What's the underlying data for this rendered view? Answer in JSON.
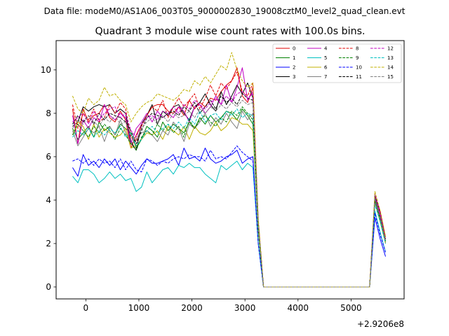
{
  "suptitle": "Data file: modeM0/AS1A06_003T05_9000002830_19008cztM0_level2_quad_clean.evt",
  "chart_data": {
    "type": "line",
    "title": "Quadrant 3 module wise count rates with 100.0s bins.",
    "xlabel": "",
    "ylabel": "",
    "x_offset_label": "+2.9206e8",
    "xlim": [
      -560,
      6000
    ],
    "ylim": [
      -0.55,
      11.35
    ],
    "xticks": [
      0,
      1000,
      2000,
      3000,
      4000,
      5000
    ],
    "xtick_labels": [
      "0",
      "1000",
      "2000",
      "3000",
      "4000",
      "5000"
    ],
    "yticks": [
      0,
      2,
      4,
      6,
      8,
      10
    ],
    "ytick_labels": [
      "0",
      "2",
      "4",
      "6",
      "8",
      "10"
    ],
    "grid": false,
    "legend_position": "upper right",
    "legend_columns": 4,
    "x": [
      -250,
      -150,
      -50,
      50,
      150,
      250,
      350,
      450,
      550,
      650,
      750,
      850,
      950,
      1050,
      1150,
      1250,
      1350,
      1450,
      1550,
      1650,
      1750,
      1850,
      1950,
      2050,
      2150,
      2250,
      2350,
      2450,
      2550,
      2650,
      2750,
      2850,
      2950,
      3050,
      3150,
      3250,
      3350,
      3450,
      3550,
      3650,
      3750,
      3850,
      3950,
      4050,
      4150,
      4250,
      4350,
      4450,
      4550,
      4650,
      4750,
      4850,
      4950,
      5050,
      5150,
      5250,
      5350,
      5450,
      5550,
      5650
    ],
    "series": [
      {
        "name": "0",
        "color": "#e00000",
        "dash": false,
        "values": [
          8.2,
          6.6,
          8.2,
          7.6,
          7.9,
          8.0,
          8.4,
          7.8,
          7.6,
          8.1,
          7.7,
          6.4,
          7.0,
          7.5,
          7.9,
          8.3,
          8.4,
          8.4,
          8.1,
          8.0,
          8.3,
          7.9,
          8.6,
          8.2,
          8.5,
          8.3,
          8.7,
          8.6,
          9.0,
          9.3,
          9.5,
          10.1,
          8.8,
          8.5,
          9.2,
          3.0,
          0.0,
          0.0,
          0.0,
          0.0,
          0.0,
          0.0,
          0.0,
          0.0,
          0.0,
          0.0,
          0.0,
          0.0,
          0.0,
          0.0,
          0.0,
          0.0,
          0.0,
          0.0,
          0.0,
          0.0,
          0.0,
          4.2,
          3.4,
          2.0
        ]
      },
      {
        "name": "1",
        "color": "#008000",
        "dash": false,
        "values": [
          7.3,
          6.8,
          7.1,
          7.4,
          6.9,
          7.6,
          7.2,
          7.4,
          7.0,
          7.5,
          7.3,
          7.1,
          6.4,
          6.8,
          7.4,
          7.2,
          6.9,
          7.6,
          7.2,
          7.5,
          7.3,
          7.1,
          7.6,
          7.3,
          7.8,
          7.5,
          7.9,
          7.6,
          7.8,
          8.1,
          8.0,
          7.7,
          8.2,
          7.9,
          7.5,
          2.6,
          0.0,
          0.0,
          0.0,
          0.0,
          0.0,
          0.0,
          0.0,
          0.0,
          0.0,
          0.0,
          0.0,
          0.0,
          0.0,
          0.0,
          0.0,
          0.0,
          0.0,
          0.0,
          0.0,
          0.0,
          0.0,
          4.0,
          3.0,
          2.1
        ]
      },
      {
        "name": "2",
        "color": "#0000ff",
        "dash": false,
        "values": [
          5.5,
          5.1,
          6.1,
          5.6,
          5.8,
          5.5,
          5.9,
          5.6,
          5.9,
          5.4,
          5.8,
          5.5,
          5.2,
          5.6,
          5.9,
          5.7,
          5.7,
          5.8,
          5.9,
          6.1,
          5.6,
          6.4,
          5.9,
          6.0,
          5.8,
          6.4,
          5.9,
          5.7,
          5.8,
          6.0,
          6.1,
          6.3,
          5.7,
          5.9,
          6.0,
          2.0,
          0.0,
          0.0,
          0.0,
          0.0,
          0.0,
          0.0,
          0.0,
          0.0,
          0.0,
          0.0,
          0.0,
          0.0,
          0.0,
          0.0,
          0.0,
          0.0,
          0.0,
          0.0,
          0.0,
          0.0,
          0.0,
          3.2,
          2.2,
          1.4
        ]
      },
      {
        "name": "3",
        "color": "#000000",
        "dash": false,
        "values": [
          7.4,
          7.6,
          8.3,
          8.1,
          8.3,
          8.4,
          8.3,
          8.4,
          8.0,
          8.2,
          8.0,
          6.7,
          6.3,
          7.5,
          7.9,
          8.4,
          7.5,
          8.1,
          7.9,
          8.3,
          8.4,
          8.0,
          7.7,
          8.3,
          8.5,
          8.9,
          8.4,
          8.1,
          9.0,
          8.4,
          8.8,
          9.3,
          8.9,
          9.4,
          8.7,
          3.0,
          0.0,
          0.0,
          0.0,
          0.0,
          0.0,
          0.0,
          0.0,
          0.0,
          0.0,
          0.0,
          0.0,
          0.0,
          0.0,
          0.0,
          0.0,
          0.0,
          0.0,
          0.0,
          0.0,
          0.0,
          0.0,
          3.9,
          3.2,
          2.2
        ]
      },
      {
        "name": "4",
        "color": "#c000c0",
        "dash": false,
        "values": [
          7.9,
          6.6,
          7.7,
          7.3,
          7.8,
          7.6,
          8.4,
          7.9,
          7.7,
          8.0,
          7.8,
          6.6,
          7.3,
          7.6,
          8.0,
          7.6,
          8.1,
          7.8,
          8.0,
          7.8,
          8.3,
          8.1,
          7.6,
          8.3,
          8.4,
          8.0,
          8.3,
          8.8,
          8.4,
          9.3,
          8.5,
          9.2,
          10.1,
          8.6,
          9.0,
          3.0,
          0.0,
          0.0,
          0.0,
          0.0,
          0.0,
          0.0,
          0.0,
          0.0,
          0.0,
          0.0,
          0.0,
          0.0,
          0.0,
          0.0,
          0.0,
          0.0,
          0.0,
          0.0,
          0.0,
          0.0,
          0.0,
          4.1,
          3.3,
          2.1
        ]
      },
      {
        "name": "5",
        "color": "#00c0c0",
        "dash": false,
        "values": [
          5.1,
          4.8,
          5.4,
          5.4,
          5.2,
          4.8,
          5.0,
          5.3,
          5.0,
          5.2,
          4.9,
          5.0,
          4.4,
          4.6,
          5.3,
          4.8,
          5.1,
          5.4,
          5.5,
          5.2,
          5.6,
          5.5,
          5.7,
          5.5,
          5.5,
          5.2,
          5.0,
          4.8,
          5.6,
          5.4,
          5.6,
          5.8,
          5.4,
          5.7,
          5.5,
          2.0,
          0.0,
          0.0,
          0.0,
          0.0,
          0.0,
          0.0,
          0.0,
          0.0,
          0.0,
          0.0,
          0.0,
          0.0,
          0.0,
          0.0,
          0.0,
          0.0,
          0.0,
          0.0,
          0.0,
          0.0,
          0.0,
          3.5,
          2.5,
          1.6
        ]
      },
      {
        "name": "6",
        "color": "#c0b000",
        "dash": false,
        "values": [
          7.0,
          7.6,
          7.4,
          6.8,
          7.5,
          6.9,
          7.3,
          7.1,
          6.9,
          7.0,
          7.3,
          6.4,
          6.5,
          6.8,
          7.1,
          7.0,
          7.2,
          6.8,
          7.4,
          7.2,
          7.0,
          7.4,
          6.8,
          7.4,
          7.1,
          7.0,
          7.2,
          7.6,
          7.2,
          7.4,
          7.8,
          7.7,
          7.5,
          7.5,
          7.2,
          2.6,
          0.0,
          0.0,
          0.0,
          0.0,
          0.0,
          0.0,
          0.0,
          0.0,
          0.0,
          0.0,
          0.0,
          0.0,
          0.0,
          0.0,
          0.0,
          0.0,
          0.0,
          0.0,
          0.0,
          0.0,
          0.0,
          3.9,
          3.0,
          2.0
        ]
      },
      {
        "name": "7",
        "color": "#808080",
        "dash": false,
        "values": [
          7.2,
          6.5,
          6.9,
          7.3,
          7.1,
          7.4,
          6.7,
          7.4,
          7.0,
          7.7,
          7.1,
          6.6,
          6.8,
          7.1,
          7.2,
          7.0,
          6.7,
          7.2,
          7.0,
          7.6,
          7.3,
          6.7,
          7.5,
          7.3,
          7.6,
          8.0,
          7.4,
          7.8,
          7.5,
          8.0,
          7.6,
          7.3,
          8.1,
          7.7,
          8.0,
          2.8,
          0.0,
          0.0,
          0.0,
          0.0,
          0.0,
          0.0,
          0.0,
          0.0,
          0.0,
          0.0,
          0.0,
          0.0,
          0.0,
          0.0,
          0.0,
          0.0,
          0.0,
          0.0,
          0.0,
          0.0,
          0.0,
          3.9,
          3.1,
          2.1
        ]
      },
      {
        "name": "8",
        "color": "#e00000",
        "dash": true,
        "values": [
          8.4,
          7.3,
          8.0,
          7.7,
          8.2,
          7.6,
          7.8,
          8.4,
          8.0,
          8.5,
          8.2,
          6.9,
          6.7,
          7.4,
          7.9,
          8.3,
          8.1,
          8.6,
          7.8,
          8.3,
          8.7,
          8.3,
          8.6,
          8.9,
          8.2,
          8.7,
          9.3,
          8.8,
          9.4,
          9.1,
          9.5,
          9.9,
          9.0,
          8.8,
          9.4,
          3.1,
          0.0,
          0.0,
          0.0,
          0.0,
          0.0,
          0.0,
          0.0,
          0.0,
          0.0,
          0.0,
          0.0,
          0.0,
          0.0,
          0.0,
          0.0,
          0.0,
          0.0,
          0.0,
          0.0,
          0.0,
          0.0,
          4.2,
          3.5,
          2.3
        ]
      },
      {
        "name": "9",
        "color": "#008000",
        "dash": true,
        "values": [
          7.0,
          7.5,
          7.2,
          6.9,
          7.4,
          7.1,
          7.5,
          7.2,
          6.8,
          7.3,
          7.0,
          6.6,
          6.3,
          6.9,
          7.2,
          7.0,
          7.5,
          7.2,
          7.5,
          7.1,
          7.4,
          6.9,
          7.7,
          7.3,
          7.7,
          7.9,
          7.6,
          7.4,
          7.8,
          7.6,
          8.1,
          7.9,
          8.3,
          8.0,
          7.7,
          2.7,
          0.0,
          0.0,
          0.0,
          0.0,
          0.0,
          0.0,
          0.0,
          0.0,
          0.0,
          0.0,
          0.0,
          0.0,
          0.0,
          0.0,
          0.0,
          0.0,
          0.0,
          0.0,
          0.0,
          0.0,
          0.0,
          4.0,
          3.1,
          2.1
        ]
      },
      {
        "name": "10",
        "color": "#0000ff",
        "dash": true,
        "values": [
          5.8,
          5.9,
          5.7,
          5.9,
          5.6,
          5.9,
          5.7,
          5.8,
          5.5,
          5.9,
          5.4,
          5.8,
          5.4,
          5.3,
          5.9,
          5.8,
          5.6,
          5.8,
          5.7,
          5.9,
          6.0,
          5.9,
          6.1,
          6.0,
          6.0,
          5.8,
          6.3,
          5.9,
          6.0,
          5.9,
          6.2,
          6.5,
          6.2,
          6.0,
          5.8,
          2.0,
          0.0,
          0.0,
          0.0,
          0.0,
          0.0,
          0.0,
          0.0,
          0.0,
          0.0,
          0.0,
          0.0,
          0.0,
          0.0,
          0.0,
          0.0,
          0.0,
          0.0,
          0.0,
          0.0,
          0.0,
          0.0,
          3.4,
          2.4,
          1.6
        ]
      },
      {
        "name": "11",
        "color": "#000000",
        "dash": true,
        "values": [
          7.5,
          7.9,
          7.6,
          7.9,
          7.5,
          8.0,
          7.7,
          8.0,
          7.9,
          7.8,
          7.6,
          7.2,
          6.6,
          7.2,
          7.8,
          8.0,
          7.9,
          7.8,
          8.0,
          8.1,
          7.9,
          8.3,
          8.1,
          8.5,
          8.0,
          8.3,
          8.6,
          8.2,
          8.8,
          8.5,
          8.7,
          8.4,
          8.9,
          8.7,
          8.6,
          2.9,
          0.0,
          0.0,
          0.0,
          0.0,
          0.0,
          0.0,
          0.0,
          0.0,
          0.0,
          0.0,
          0.0,
          0.0,
          0.0,
          0.0,
          0.0,
          0.0,
          0.0,
          0.0,
          0.0,
          0.0,
          0.0,
          4.2,
          3.4,
          2.2
        ]
      },
      {
        "name": "12",
        "color": "#c000c0",
        "dash": true,
        "values": [
          7.6,
          7.8,
          8.0,
          7.5,
          8.1,
          7.7,
          8.0,
          8.2,
          8.3,
          7.8,
          8.0,
          7.2,
          6.9,
          7.5,
          7.8,
          7.9,
          7.7,
          8.1,
          8.0,
          8.3,
          8.0,
          8.4,
          8.2,
          8.6,
          8.4,
          8.2,
          8.5,
          8.7,
          8.4,
          8.8,
          8.5,
          8.9,
          9.0,
          8.7,
          8.9,
          3.0,
          0.0,
          0.0,
          0.0,
          0.0,
          0.0,
          0.0,
          0.0,
          0.0,
          0.0,
          0.0,
          0.0,
          0.0,
          0.0,
          0.0,
          0.0,
          0.0,
          0.0,
          0.0,
          0.0,
          0.0,
          0.0,
          4.3,
          3.4,
          2.2
        ]
      },
      {
        "name": "13",
        "color": "#00c0c0",
        "dash": true,
        "values": [
          6.9,
          7.2,
          7.0,
          7.3,
          6.9,
          7.2,
          7.0,
          7.3,
          7.1,
          7.4,
          6.9,
          7.1,
          6.5,
          6.8,
          7.2,
          7.4,
          7.1,
          7.3,
          7.5,
          7.3,
          7.6,
          7.3,
          7.8,
          7.5,
          8.1,
          7.6,
          7.9,
          8.0,
          7.7,
          8.1,
          7.9,
          8.2,
          7.8,
          8.0,
          7.9,
          2.8,
          0.0,
          0.0,
          0.0,
          0.0,
          0.0,
          0.0,
          0.0,
          0.0,
          0.0,
          0.0,
          0.0,
          0.0,
          0.0,
          0.0,
          0.0,
          0.0,
          0.0,
          0.0,
          0.0,
          0.0,
          0.0,
          3.8,
          3.0,
          2.0
        ]
      },
      {
        "name": "14",
        "color": "#c0b000",
        "dash": true,
        "values": [
          8.8,
          8.2,
          8.0,
          8.7,
          8.4,
          8.6,
          9.2,
          8.8,
          8.9,
          8.6,
          8.4,
          7.6,
          8.0,
          8.3,
          8.5,
          8.6,
          8.9,
          8.8,
          8.7,
          8.6,
          8.8,
          9.1,
          9.0,
          9.5,
          9.3,
          9.7,
          9.4,
          9.8,
          10.2,
          10.0,
          10.8,
          10.0,
          9.5,
          9.2,
          9.4,
          3.2,
          0.0,
          0.0,
          0.0,
          0.0,
          0.0,
          0.0,
          0.0,
          0.0,
          0.0,
          0.0,
          0.0,
          0.0,
          0.0,
          0.0,
          0.0,
          0.0,
          0.0,
          0.0,
          0.0,
          0.0,
          0.0,
          4.4,
          3.5,
          2.3
        ]
      },
      {
        "name": "15",
        "color": "#808080",
        "dash": true,
        "values": [
          7.3,
          7.7,
          7.5,
          7.9,
          7.6,
          7.4,
          7.8,
          7.6,
          7.9,
          7.5,
          7.6,
          7.0,
          6.8,
          7.3,
          7.6,
          7.8,
          7.5,
          7.9,
          7.6,
          8.0,
          7.8,
          7.9,
          8.1,
          7.8,
          8.2,
          8.0,
          8.3,
          8.1,
          8.4,
          8.2,
          8.5,
          8.3,
          8.6,
          8.4,
          8.5,
          2.9,
          0.0,
          0.0,
          0.0,
          0.0,
          0.0,
          0.0,
          0.0,
          0.0,
          0.0,
          0.0,
          0.0,
          0.0,
          0.0,
          0.0,
          0.0,
          0.0,
          0.0,
          0.0,
          0.0,
          0.0,
          0.0,
          4.1,
          3.2,
          2.1
        ]
      }
    ]
  }
}
